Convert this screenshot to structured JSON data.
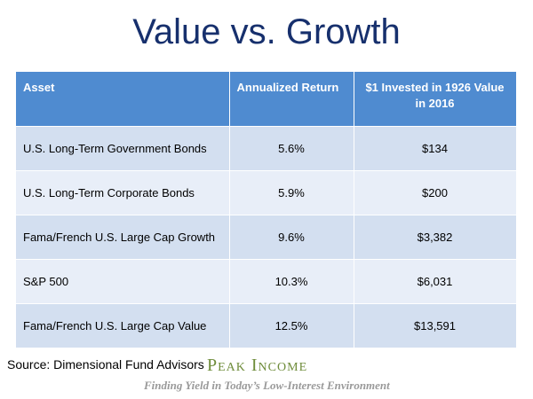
{
  "title": "Value vs. Growth",
  "table": {
    "headers": [
      "Asset",
      "Annualized Return",
      "$1 Invested in 1926 Value in 2016"
    ],
    "rows": [
      [
        "U.S. Long-Term Government Bonds",
        "5.6%",
        "$134"
      ],
      [
        "U.S. Long-Term Corporate Bonds",
        "5.9%",
        "$200"
      ],
      [
        "Fama/French U.S. Large Cap Growth",
        "9.6%",
        "$3,382"
      ],
      [
        "S&P 500",
        "10.3%",
        "$6,031"
      ],
      [
        "Fama/French U.S. Large Cap Value",
        "12.5%",
        "$13,591"
      ]
    ]
  },
  "footer": {
    "source": "Source: Dimensional Fund Advisors",
    "brand": "Peak Income",
    "tagline": "Finding Yield in Today’s Low-Interest Environment"
  },
  "colors": {
    "title": "#17306d",
    "header_bg": "#4f8bd0",
    "row_odd": "#d3dff0",
    "row_even": "#e8eef8",
    "brand": "#6e8c3a"
  }
}
